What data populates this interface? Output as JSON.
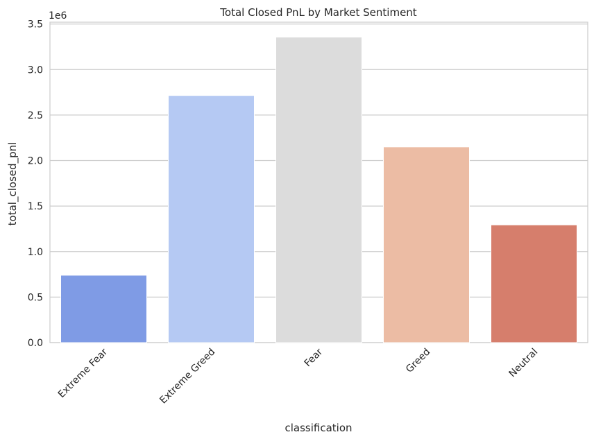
{
  "chart_data": {
    "type": "bar",
    "title": "Total Closed PnL by Market Sentiment",
    "xlabel": "classification",
    "ylabel": "total_closed_pnl",
    "offset_label": "1e6",
    "categories": [
      "Extreme Fear",
      "Extreme Greed",
      "Fear",
      "Greed",
      "Neutral"
    ],
    "values": [
      0.74,
      2.715,
      3.357,
      2.15,
      1.293
    ],
    "value_scale": 1000000,
    "colors": [
      "#7f9be5",
      "#b5c9f3",
      "#dcdcdc",
      "#ecbca4",
      "#d67e6c"
    ],
    "ylim": [
      0,
      3.52
    ],
    "yticks": [
      "0.0",
      "0.5",
      "1.0",
      "1.5",
      "2.0",
      "2.5",
      "3.0",
      "3.5"
    ],
    "grid": "horizontal",
    "legend": "none"
  }
}
